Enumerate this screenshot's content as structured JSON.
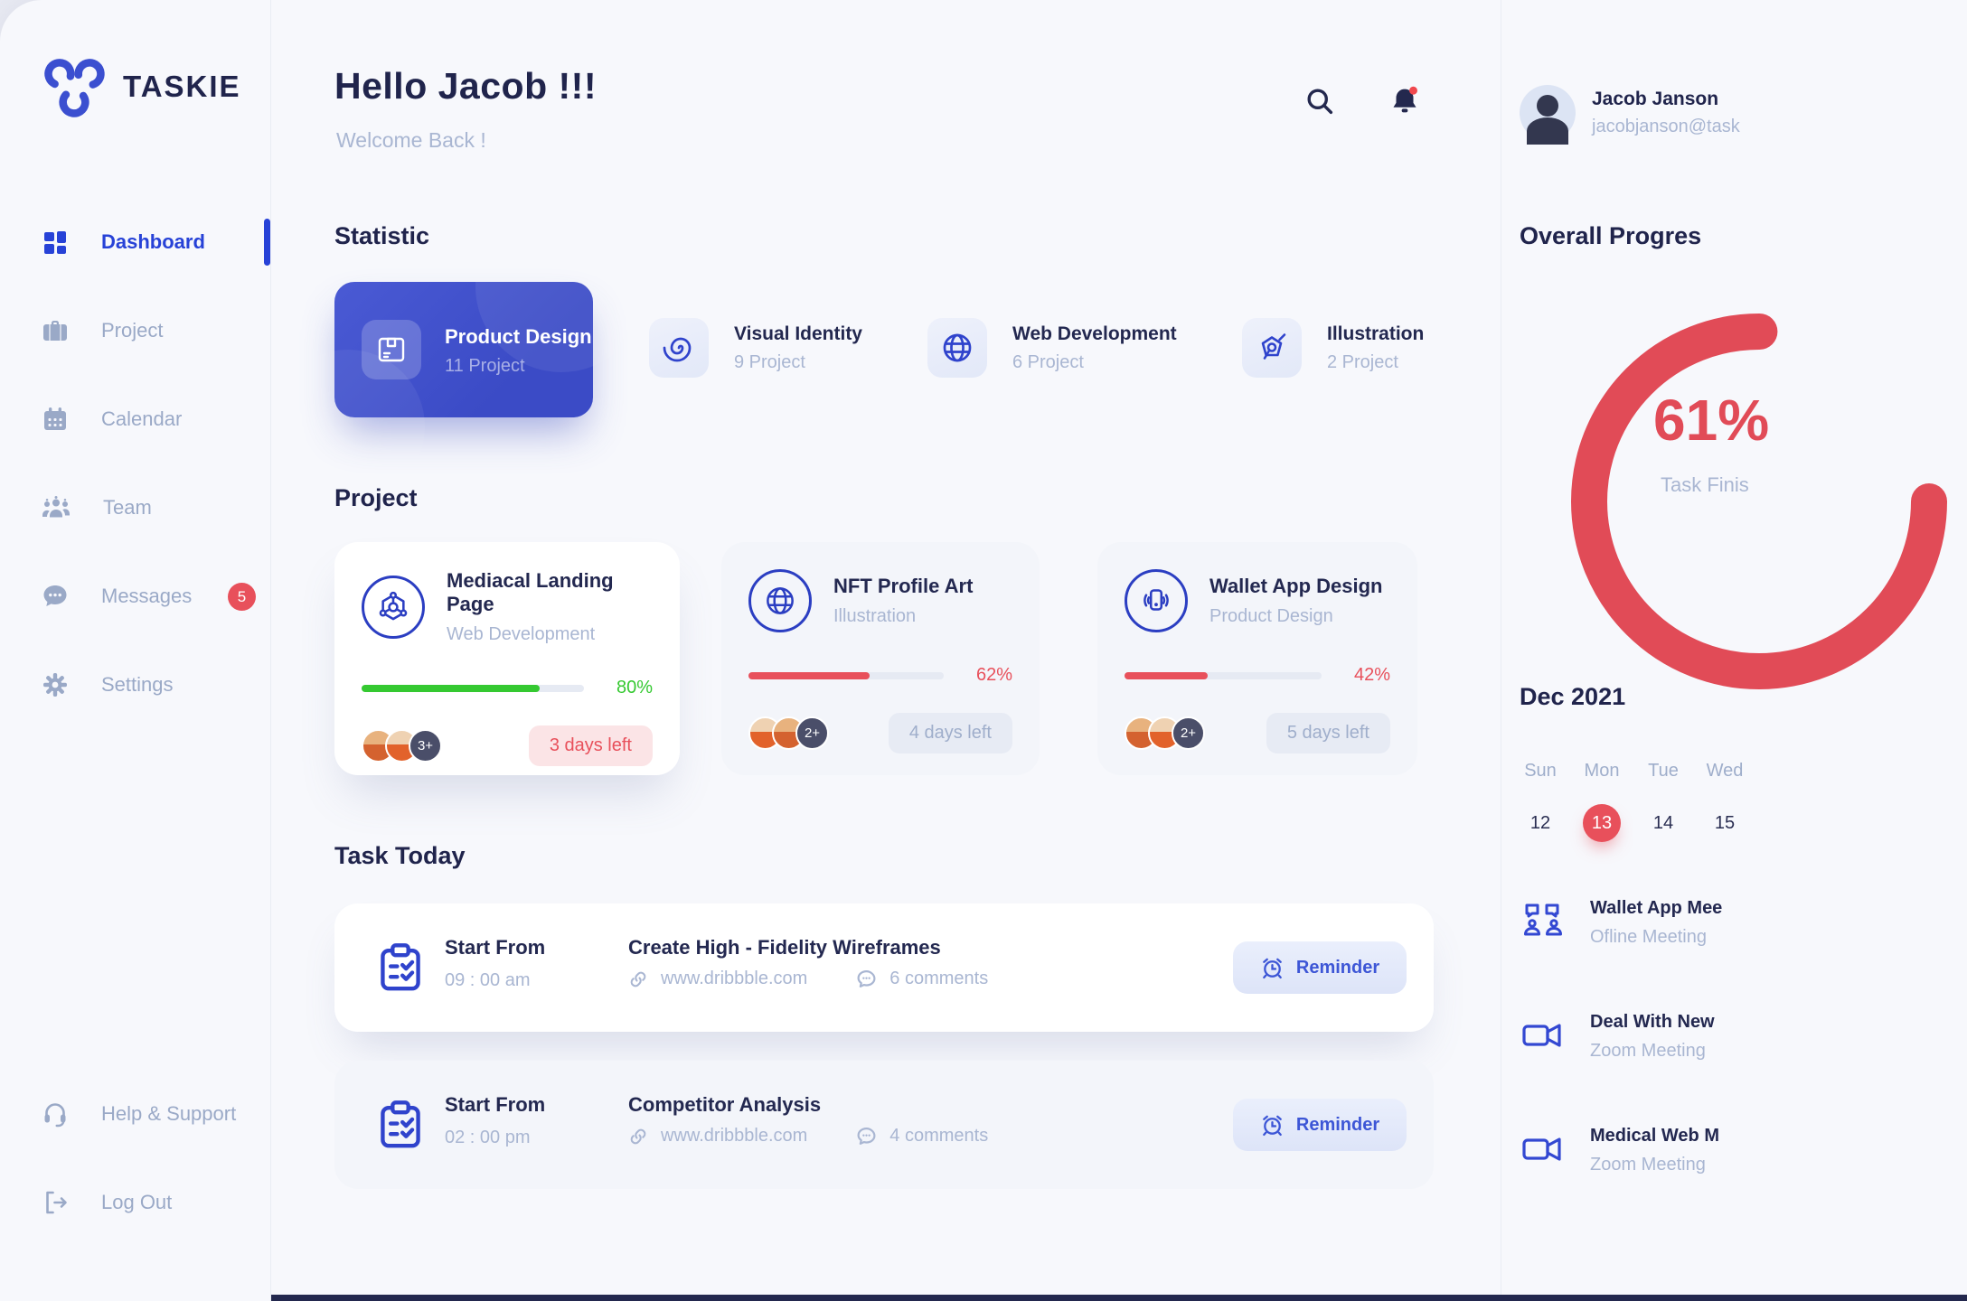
{
  "brand": {
    "name": "TASKIE"
  },
  "sidebar": {
    "items": [
      {
        "label": "Dashboard",
        "active": true
      },
      {
        "label": "Project"
      },
      {
        "label": "Calendar"
      },
      {
        "label": "Team"
      },
      {
        "label": "Messages",
        "badge": "5"
      },
      {
        "label": "Settings"
      }
    ],
    "footer": [
      {
        "label": "Help & Support"
      },
      {
        "label": "Log Out"
      }
    ]
  },
  "header": {
    "greeting": "Hello Jacob !!!",
    "subtitle": "Welcome Back !"
  },
  "statistic": {
    "title": "Statistic",
    "cards": [
      {
        "title": "Product Design",
        "count": "11 Project"
      },
      {
        "title": "Visual Identity",
        "count": "9 Project"
      },
      {
        "title": "Web Development",
        "count": "6 Project"
      },
      {
        "title": "Illustration",
        "count": "2 Project"
      }
    ]
  },
  "projects": {
    "title": "Project",
    "cards": [
      {
        "title": "Mediacal Landing Page",
        "category": "Web Development",
        "progress": 80,
        "percent_label": "80%",
        "extra": "3+",
        "due": "3 days left"
      },
      {
        "title": "NFT Profile Art",
        "category": "Illustration",
        "progress": 62,
        "percent_label": "62%",
        "extra": "2+",
        "due": "4 days left"
      },
      {
        "title": "Wallet App Design",
        "category": "Product Design",
        "progress": 42,
        "percent_label": "42%",
        "extra": "2+",
        "due": "5 days left"
      }
    ]
  },
  "tasks": {
    "title": "Task Today",
    "reminder_label": "Reminder",
    "items": [
      {
        "start_label": "Start From",
        "time": "09 : 00 am",
        "title": "Create High - Fidelity Wireframes",
        "link": "www.dribbble.com",
        "comments": "6 comments"
      },
      {
        "start_label": "Start From",
        "time": "02 : 00 pm",
        "title": "Competitor Analysis",
        "link": "www.dribbble.com",
        "comments": "4 comments"
      }
    ]
  },
  "profile": {
    "name": "Jacob Janson",
    "email": "jacobjanson@task"
  },
  "overall": {
    "title": "Overall Progres",
    "percent": "61%",
    "caption": "Task Finis"
  },
  "calendar": {
    "month": "Dec 2021",
    "days": [
      "Sun",
      "Mon",
      "Tue",
      "Wed"
    ],
    "dates": [
      {
        "num": "12"
      },
      {
        "num": "13",
        "active": true
      },
      {
        "num": "14"
      },
      {
        "num": "15"
      }
    ]
  },
  "meetings": [
    {
      "title": "Wallet App Mee",
      "subtitle": "Ofline Meeting"
    },
    {
      "title": "Deal With New",
      "subtitle": "Zoom Meeting"
    },
    {
      "title": "Medical Web M",
      "subtitle": "Zoom Meeting"
    }
  ],
  "colors": {
    "primary": "#3B4FD0",
    "active_blue": "#2742D7",
    "text_dark": "#20244C",
    "muted": "#A9B6D2",
    "red": "#E8505B",
    "green": "#35C931",
    "ring_red": "#E14B57"
  }
}
